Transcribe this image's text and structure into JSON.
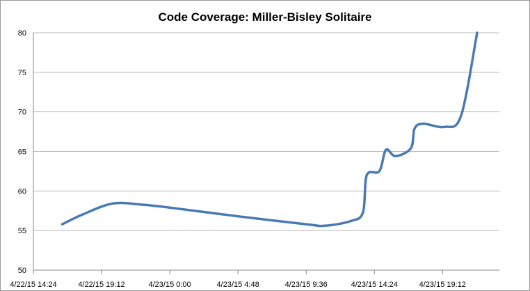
{
  "chart_data": {
    "type": "line",
    "title": "Code Coverage: Miller-Bisley Solitaire",
    "xlabel": "",
    "ylabel": "",
    "x_ticks": [
      "4/22/15 14:24",
      "4/22/15 19:12",
      "4/23/15 0:00",
      "4/23/15 4:48",
      "4/23/15 9:36",
      "4/23/15 14:24",
      "4/23/15 19:12"
    ],
    "y_ticks": [
      "50",
      "55",
      "60",
      "65",
      "70",
      "75",
      "80"
    ],
    "ylim": [
      50,
      80
    ],
    "xlim": [
      "4/22/15 14:24",
      "4/23/15 23:12"
    ],
    "grid": "horizontal",
    "legend": "none",
    "line_color": "#4a7ab3",
    "series": [
      {
        "points": [
          {
            "x": "4/22/15 16:26",
            "y": 55.8
          },
          {
            "x": "4/22/15 17:50",
            "y": 57.0
          },
          {
            "x": "4/22/15 19:56",
            "y": 58.4
          },
          {
            "x": "4/22/15 21:55",
            "y": 58.3
          },
          {
            "x": "4/23/15 0:00",
            "y": 57.9
          },
          {
            "x": "4/23/15 4:48",
            "y": 56.8
          },
          {
            "x": "4/23/15 9:36",
            "y": 55.8
          },
          {
            "x": "4/23/15 10:54",
            "y": 55.6
          },
          {
            "x": "4/23/15 12:45",
            "y": 56.2
          },
          {
            "x": "4/23/15 13:36",
            "y": 57.3
          },
          {
            "x": "4/23/15 13:52",
            "y": 62.0
          },
          {
            "x": "4/23/15 14:45",
            "y": 62.5
          },
          {
            "x": "4/23/15 15:13",
            "y": 65.2
          },
          {
            "x": "4/23/15 15:53",
            "y": 64.4
          },
          {
            "x": "4/23/15 16:58",
            "y": 65.4
          },
          {
            "x": "4/23/15 17:14",
            "y": 67.9
          },
          {
            "x": "4/23/15 17:51",
            "y": 68.5
          },
          {
            "x": "4/23/15 19:20",
            "y": 68.1
          },
          {
            "x": "4/23/15 20:30",
            "y": 69.5
          },
          {
            "x": "4/23/15 21:38",
            "y": 80.0
          }
        ]
      }
    ]
  }
}
